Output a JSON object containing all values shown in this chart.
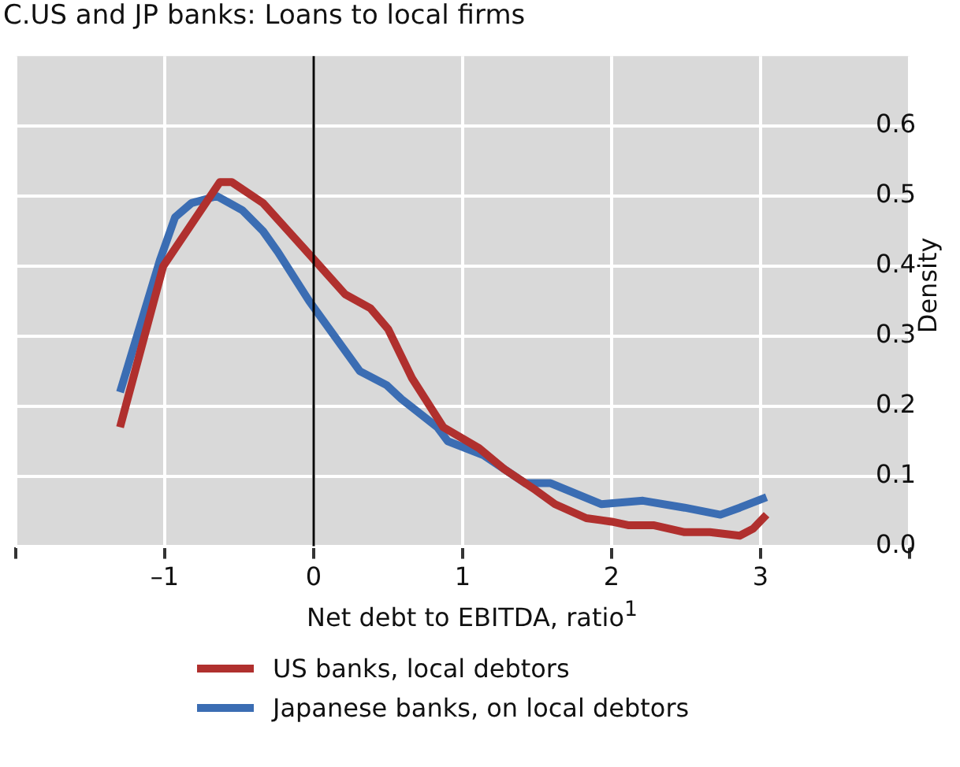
{
  "chart_data": {
    "type": "line",
    "title": "C.US and JP banks: Loans to local firms",
    "xlabel": "Net debt to EBITDA, ratio$^{1}$",
    "ylabel": "Density",
    "xlim": [
      -2,
      4
    ],
    "xticks": [
      {
        "value": -2,
        "label": null
      },
      {
        "value": -1,
        "label": "–1"
      },
      0,
      1,
      2,
      3,
      {
        "value": 4,
        "label": null
      }
    ],
    "ylim": [
      0,
      0.7
    ],
    "yticks": [
      {
        "value": 0,
        "label": "0.0"
      },
      0.1,
      0.2,
      0.3,
      0.4,
      0.5,
      0.6
    ],
    "grid": true,
    "legend": "bottom",
    "marker": "none",
    "line_style": "solid",
    "ref_lines": [
      {
        "axis": "x",
        "value": 0,
        "color": "#000000"
      }
    ],
    "series": [
      {
        "name": "US banks, local debtors",
        "color": "#b0302e",
        "x": [
          -1.3,
          -1.01,
          -0.63,
          -0.55,
          -0.34,
          -0.17,
          0.0,
          0.21,
          0.38,
          0.5,
          0.66,
          0.87,
          1.11,
          1.28,
          1.49,
          1.62,
          1.83,
          2.0,
          2.11,
          2.28,
          2.49,
          2.66,
          2.86,
          2.95,
          3.04
        ],
        "values": [
          0.17,
          0.4,
          0.52,
          0.52,
          0.49,
          0.45,
          0.41,
          0.36,
          0.34,
          0.31,
          0.24,
          0.17,
          0.14,
          0.11,
          0.08,
          0.06,
          0.04,
          0.035,
          0.03,
          0.03,
          0.02,
          0.02,
          0.015,
          0.025,
          0.045
        ]
      },
      {
        "name": "Japanese banks, on local debtors",
        "color": "#3b6db3",
        "x": [
          -1.3,
          -1.03,
          -0.93,
          -0.82,
          -0.65,
          -0.48,
          -0.34,
          -0.24,
          -0.03,
          0.14,
          0.31,
          0.49,
          0.59,
          0.83,
          0.9,
          1.14,
          1.42,
          1.59,
          1.93,
          2.21,
          2.49,
          2.73,
          2.86,
          3.04
        ],
        "values": [
          0.22,
          0.41,
          0.47,
          0.49,
          0.5,
          0.48,
          0.45,
          0.42,
          0.35,
          0.3,
          0.25,
          0.23,
          0.21,
          0.17,
          0.15,
          0.13,
          0.09,
          0.09,
          0.06,
          0.065,
          0.055,
          0.045,
          0.055,
          0.07
        ]
      }
    ]
  }
}
